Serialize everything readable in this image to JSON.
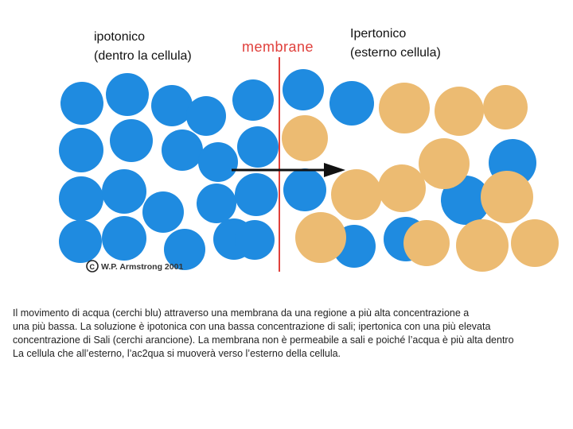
{
  "labels": {
    "left": "ipotonico\n(dentro la cellula)",
    "right": "Ipertonico\n(esterno cellula)",
    "membrane": "membrane",
    "copyright": "W.P. Armstrong 2001"
  },
  "caption": [
    "Il movimento di acqua (cerchi blu) attraverso una membrana da una regione a più alta concentrazione a",
    "una più bassa. La soluzione è ipotonica con una bassa concentrazione di sali; ipertonica con una più elevata",
    "concentrazione di Sali (cerchi arancione). La membrana non è permeabile a  sali e poiché l’acqua è più alta dentro",
    "La cellula che all’esterno, l’ac2qua si muoverà verso l’esterno della cellula."
  ],
  "colors": {
    "water": "#1f8be0",
    "salt": "#ecbb72",
    "membrane": "#e0403c",
    "arrow": "#111111"
  }
}
